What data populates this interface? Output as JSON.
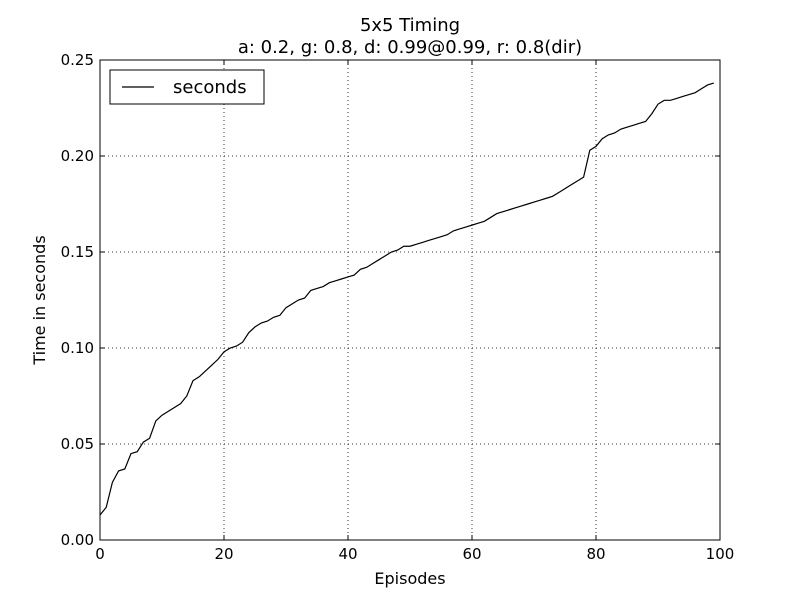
{
  "chart_data": {
    "type": "line",
    "title": "5x5 Timing",
    "subtitle": "a: 0.2, g: 0.8, d: 0.99@0.99, r: 0.8(dir)",
    "xlabel": "Episodes",
    "ylabel": "Time in seconds",
    "xlim": [
      0,
      100
    ],
    "ylim": [
      0,
      0.25
    ],
    "xticks": [
      0,
      20,
      40,
      60,
      80,
      100
    ],
    "xtick_labels": [
      "0",
      "20",
      "40",
      "60",
      "80",
      "100"
    ],
    "yticks": [
      0,
      0.05,
      0.1,
      0.15,
      0.2,
      0.25
    ],
    "ytick_labels": [
      "0.00",
      "0.05",
      "0.10",
      "0.15",
      "0.20",
      "0.25"
    ],
    "grid": true,
    "legend_position": "top-left",
    "series": [
      {
        "name": "seconds",
        "color": "#000000",
        "x": [
          0,
          1,
          2,
          3,
          4,
          5,
          6,
          7,
          8,
          9,
          10,
          11,
          12,
          13,
          14,
          15,
          16,
          17,
          18,
          19,
          20,
          21,
          22,
          23,
          24,
          25,
          26,
          27,
          28,
          29,
          30,
          31,
          32,
          33,
          34,
          35,
          36,
          37,
          38,
          39,
          40,
          41,
          42,
          43,
          44,
          45,
          46,
          47,
          48,
          49,
          50,
          51,
          52,
          53,
          54,
          55,
          56,
          57,
          58,
          59,
          60,
          61,
          62,
          63,
          64,
          65,
          66,
          67,
          68,
          69,
          70,
          71,
          72,
          73,
          74,
          75,
          76,
          77,
          78,
          79,
          80,
          81,
          82,
          83,
          84,
          85,
          86,
          87,
          88,
          89,
          90,
          91,
          92,
          93,
          94,
          95,
          96,
          97,
          98,
          99
        ],
        "y": [
          0.013,
          0.017,
          0.03,
          0.036,
          0.037,
          0.045,
          0.046,
          0.051,
          0.053,
          0.062,
          0.065,
          0.067,
          0.069,
          0.071,
          0.075,
          0.083,
          0.085,
          0.088,
          0.091,
          0.094,
          0.098,
          0.1,
          0.101,
          0.103,
          0.108,
          0.111,
          0.113,
          0.114,
          0.116,
          0.117,
          0.121,
          0.123,
          0.125,
          0.126,
          0.13,
          0.131,
          0.132,
          0.134,
          0.135,
          0.136,
          0.137,
          0.138,
          0.141,
          0.142,
          0.144,
          0.146,
          0.148,
          0.15,
          0.151,
          0.153,
          0.153,
          0.154,
          0.155,
          0.156,
          0.157,
          0.158,
          0.159,
          0.161,
          0.162,
          0.163,
          0.164,
          0.165,
          0.166,
          0.168,
          0.17,
          0.171,
          0.172,
          0.173,
          0.174,
          0.175,
          0.176,
          0.177,
          0.178,
          0.179,
          0.181,
          0.183,
          0.185,
          0.187,
          0.189,
          0.203,
          0.205,
          0.209,
          0.211,
          0.212,
          0.214,
          0.215,
          0.216,
          0.217,
          0.218,
          0.222,
          0.227,
          0.229,
          0.229,
          0.23,
          0.231,
          0.232,
          0.233,
          0.235,
          0.237,
          0.238
        ]
      }
    ]
  }
}
